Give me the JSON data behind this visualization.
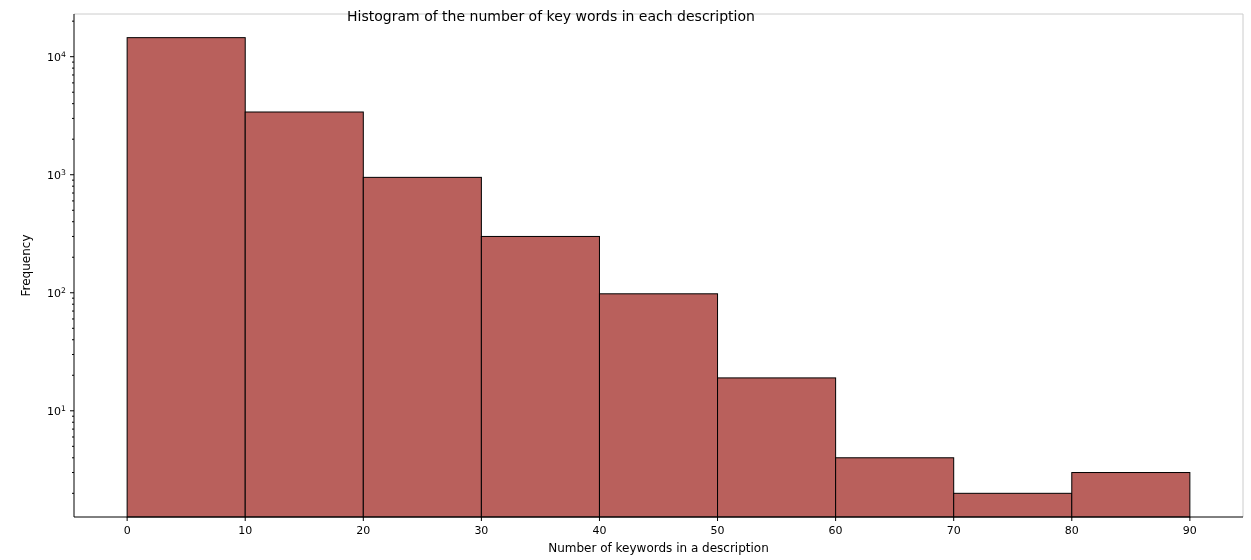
{
  "chart_data": {
    "type": "histogram",
    "title": "Histogram of the number of key words in each description",
    "xlabel": "Number of keywords in a description",
    "ylabel": "Frequency",
    "bins": [
      0,
      10,
      20,
      30,
      40,
      50,
      60,
      70,
      80,
      90
    ],
    "values": [
      14500,
      3400,
      950,
      300,
      98,
      19,
      4,
      2,
      3
    ],
    "color": "#b9605c",
    "log": "y",
    "xlim": [
      -4.5,
      94.5
    ],
    "xticks": [
      0,
      10,
      20,
      30,
      40,
      50,
      60,
      70,
      80,
      90
    ],
    "ylim": [
      1.26,
      23000
    ],
    "yticks": [
      {
        "value": 10,
        "label": "10$^{1}$"
      },
      {
        "value": 100,
        "label": "10$^{2}$"
      },
      {
        "value": 1000,
        "label": "10$^{3}$"
      },
      {
        "value": 10000,
        "label": "10$^{4}$"
      }
    ],
    "grid": false
  }
}
